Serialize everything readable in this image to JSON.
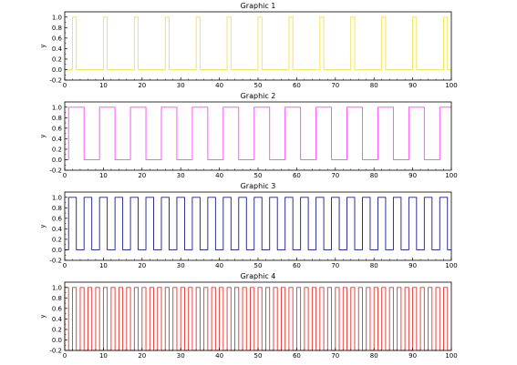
{
  "chart_data": [
    {
      "type": "line",
      "title": "Graphic 1",
      "xlabel": "",
      "ylabel": "y",
      "xlim": [
        0,
        100
      ],
      "ylim": [
        -0.2,
        1.1
      ],
      "xticks": [
        "0",
        "10",
        "20",
        "30",
        "40",
        "50",
        "60",
        "70",
        "80",
        "90",
        "100"
      ],
      "yticks": [
        "-0.2",
        "0.0",
        "0.2",
        "0.4",
        "0.6",
        "0.8",
        "1.0"
      ],
      "grid": false,
      "color": "#f2e24a",
      "series": [
        {
          "signal": "square",
          "start": 2,
          "period": 8,
          "high_duration": 1,
          "x_end": 100,
          "low": 0,
          "high": 1
        }
      ]
    },
    {
      "type": "line",
      "title": "Graphic 2",
      "xlabel": "",
      "ylabel": "y",
      "xlim": [
        0,
        100
      ],
      "ylim": [
        -0.2,
        1.1
      ],
      "xticks": [
        "0",
        "10",
        "20",
        "30",
        "40",
        "50",
        "60",
        "70",
        "80",
        "90",
        "100"
      ],
      "yticks": [
        "-0.2",
        "0.0",
        "0.2",
        "0.4",
        "0.6",
        "0.8",
        "1.0"
      ],
      "grid": false,
      "color": "#ff44ff",
      "series": [
        {
          "signal": "square",
          "start": 1,
          "period": 8,
          "high_duration": 4,
          "x_end": 100,
          "low": 0,
          "high": 1
        }
      ]
    },
    {
      "type": "line",
      "title": "Graphic 3",
      "xlabel": "",
      "ylabel": "y",
      "xlim": [
        0,
        100
      ],
      "ylim": [
        -0.2,
        1.1
      ],
      "xticks": [
        "0",
        "10",
        "20",
        "30",
        "40",
        "50",
        "60",
        "70",
        "80",
        "90",
        "100"
      ],
      "yticks": [
        "-0.2",
        "0.0",
        "0.2",
        "0.4",
        "0.6",
        "0.8",
        "1.0"
      ],
      "grid": false,
      "color": "#1a1a8a",
      "series": [
        {
          "signal": "square",
          "start": 1,
          "period": 4,
          "high_duration": 2,
          "x_end": 100,
          "low": 0,
          "high": 1
        }
      ]
    },
    {
      "type": "line",
      "title": "Graphic 4",
      "xlabel": "",
      "ylabel": "y",
      "xlim": [
        0,
        100
      ],
      "ylim": [
        -0.2,
        1.1
      ],
      "xticks": [
        "0",
        "10",
        "20",
        "30",
        "40",
        "50",
        "60",
        "70",
        "80",
        "90",
        "100"
      ],
      "yticks": [
        "-0.2",
        "0.0",
        "0.2",
        "0.4",
        "0.6",
        "0.8",
        "1.0"
      ],
      "grid": false,
      "color": "#e8322b",
      "series": [
        {
          "signal": "square",
          "start": 0,
          "period": 2,
          "high_duration": 1,
          "x_end": 100,
          "low": -0.2,
          "high": 1
        }
      ]
    }
  ]
}
